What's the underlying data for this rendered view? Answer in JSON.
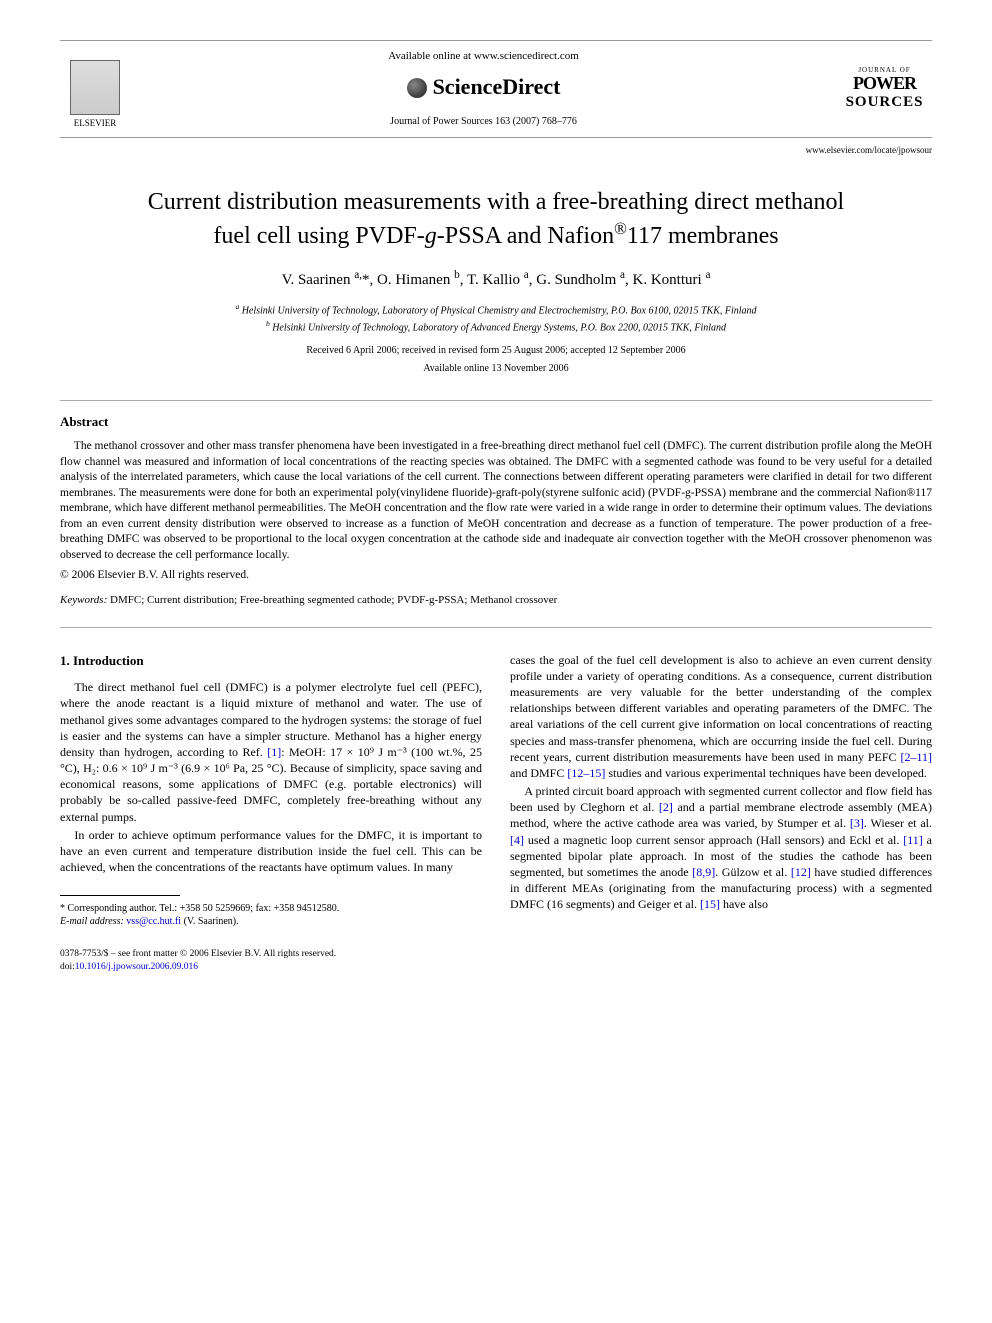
{
  "header": {
    "available": "Available online at www.sciencedirect.com",
    "brand": "ScienceDirect",
    "elsevier": "ELSEVIER",
    "journal_ref": "Journal of Power Sources 163 (2007) 768–776",
    "journal_logo_top": "JOURNAL OF",
    "journal_logo_power": "POWER",
    "journal_logo_sources": "SOURCES",
    "journal_url": "www.elsevier.com/locate/jpowsour"
  },
  "title_line1": "Current distribution measurements with a free-breathing direct methanol",
  "title_line2_pre": "fuel cell using PVDF-",
  "title_line2_g": "g",
  "title_line2_post": "-PSSA and Nafion",
  "title_line2_reg": "®",
  "title_line2_end": "117 membranes",
  "authors_html": "V. Saarinen <sup>a,</sup>*, O. Himanen <sup>b</sup>, T. Kallio <sup>a</sup>, G. Sundholm <sup>a</sup>, K. Kontturi <sup>a</sup>",
  "affil_a": "a Helsinki University of Technology, Laboratory of Physical Chemistry and Electrochemistry, P.O. Box 6100, 02015 TKK, Finland",
  "affil_b": "b Helsinki University of Technology, Laboratory of Advanced Energy Systems, P.O. Box 2200, 02015 TKK, Finland",
  "dates1": "Received 6 April 2006; received in revised form 25 August 2006; accepted 12 September 2006",
  "dates2": "Available online 13 November 2006",
  "abstract_head": "Abstract",
  "abstract_body": "The methanol crossover and other mass transfer phenomena have been investigated in a free-breathing direct methanol fuel cell (DMFC). The current distribution profile along the MeOH flow channel was measured and information of local concentrations of the reacting species was obtained. The DMFC with a segmented cathode was found to be very useful for a detailed analysis of the interrelated parameters, which cause the local variations of the cell current. The connections between different operating parameters were clarified in detail for two different membranes. The measurements were done for both an experimental poly(vinylidene fluoride)-graft-poly(styrene sulfonic acid) (PVDF-g-PSSA) membrane and the commercial Nafion®117 membrane, which have different methanol permeabilities. The MeOH concentration and the flow rate were varied in a wide range in order to determine their optimum values. The deviations from an even current density distribution were observed to increase as a function of MeOH concentration and decrease as a function of temperature. The power production of a free-breathing DMFC was observed to be proportional to the local oxygen concentration at the cathode side and inadequate air convection together with the MeOH crossover phenomenon was observed to decrease the cell performance locally.",
  "copyright": "© 2006 Elsevier B.V. All rights reserved.",
  "keywords_label": "Keywords:",
  "keywords_text": " DMFC; Current distribution; Free-breathing segmented cathode; PVDF-g-PSSA; Methanol crossover",
  "section1_head": "1. Introduction",
  "col_left": {
    "p1a": "The direct methanol fuel cell (DMFC) is a polymer electrolyte fuel cell (PEFC), where the anode reactant is a liquid mixture of methanol and water. The use of methanol gives some advantages compared to the hydrogen systems: the storage of fuel is easier and the systems can have a simpler structure. Methanol has a higher energy density than hydrogen, according to Ref. ",
    "ref1": "[1]",
    "p1b": ": MeOH: 17 × 10⁹ J m⁻³ (100 wt.%, 25 °C), H₂: 0.6 × 10⁹ J m⁻³ (6.9 × 10⁶ Pa, 25 °C). Because of simplicity, space saving and economical reasons, some applications of DMFC (e.g. portable electronics) will probably be so-called passive-feed DMFC, completely free-breathing without any external pumps.",
    "p2": "In order to achieve optimum performance values for the DMFC, it is important to have an even current and temperature distribution inside the fuel cell. This can be achieved, when the concentrations of the reactants have optimum values. In many"
  },
  "col_right": {
    "p1a": "cases the goal of the fuel cell development is also to achieve an even current density profile under a variety of operating conditions. As a consequence, current distribution measurements are very valuable for the better understanding of the complex relationships between different variables and operating parameters of the DMFC. The areal variations of the cell current give information on local concentrations of reacting species and mass-transfer phenomena, which are occurring inside the fuel cell. During recent years, current distribution measurements have been used in many PEFC ",
    "ref2_11": "[2–11]",
    "p1b": " and DMFC ",
    "ref12_15": "[12–15]",
    "p1c": " studies and various experimental techniques have been developed.",
    "p2a": "A printed circuit board approach with segmented current collector and flow field has been used by Cleghorn et al. ",
    "ref2": "[2]",
    "p2b": " and a partial membrane electrode assembly (MEA) method, where the active cathode area was varied, by Stumper et al. ",
    "ref3": "[3]",
    "p2c": ". Wieser et al. ",
    "ref4": "[4]",
    "p2d": " used a magnetic loop current sensor approach (Hall sensors) and Eckl et al. ",
    "ref11": "[11]",
    "p2e": " a segmented bipolar plate approach. In most of the studies the cathode has been segmented, but sometimes the anode ",
    "ref8_9": "[8,9]",
    "p2f": ". Gülzow et al. ",
    "ref12": "[12]",
    "p2g": " have studied differences in different MEAs (originating from the manufacturing process) with a segmented DMFC (16 segments) and Geiger et al. ",
    "ref15": "[15]",
    "p2h": " have also"
  },
  "footnote": {
    "corr": "* Corresponding author. Tel.: +358 50 5259669; fax: +358 94512580.",
    "email_label": "E-mail address:",
    "email": " vss@cc.hut.fi",
    "email_name": " (V. Saarinen)."
  },
  "doi": {
    "line1": "0378-7753/$ – see front matter © 2006 Elsevier B.V. All rights reserved.",
    "line2_pre": "doi:",
    "line2_link": "10.1016/j.jpowsour.2006.09.016"
  },
  "colors": {
    "link": "#0000cc",
    "text": "#000000",
    "rule": "#999999"
  }
}
